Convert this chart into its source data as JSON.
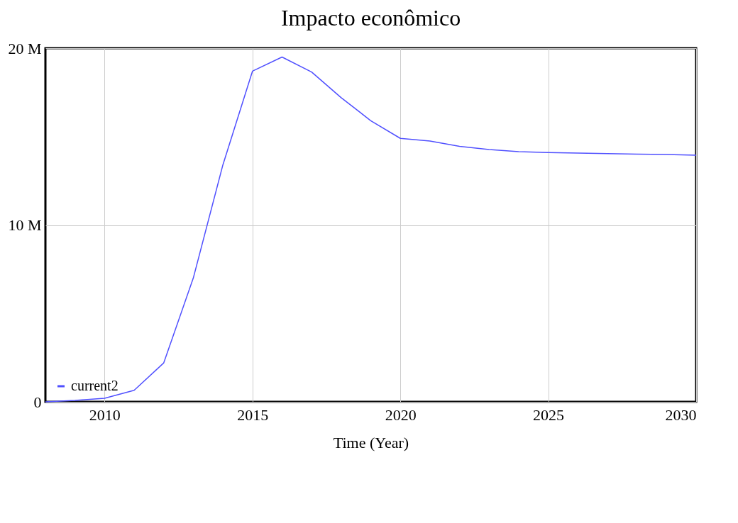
{
  "chart_data": {
    "type": "line",
    "title": "Impacto econômico",
    "xlabel": "Time (Year)",
    "x": [
      2008,
      2009,
      2010,
      2011,
      2012,
      2013,
      2014,
      2015,
      2016,
      2017,
      2018,
      2019,
      2020,
      2021,
      2022,
      2023,
      2024,
      2025,
      2026,
      2027,
      2028,
      2029,
      2030
    ],
    "series": [
      {
        "name": "current2",
        "color": "#5050ff",
        "values": [
          0,
          80000,
          200000,
          650000,
          2200000,
          7000000,
          13400000,
          18700000,
          19500000,
          18650000,
          17200000,
          15900000,
          14900000,
          14750000,
          14450000,
          14270000,
          14150000,
          14100000,
          14070000,
          14040000,
          14010000,
          13990000,
          13950000
        ]
      }
    ],
    "xlim": [
      2008,
      2030
    ],
    "xticks": [
      2010,
      2015,
      2020,
      2025,
      2030
    ],
    "ylim": [
      0,
      20000000
    ],
    "yticks": [
      {
        "value": 0,
        "label": "0"
      },
      {
        "value": 10000000,
        "label": "10 M"
      },
      {
        "value": 20000000,
        "label": "20 M"
      }
    ],
    "grid": true,
    "legend": "bottom left",
    "marker": "none",
    "line_style": "solid"
  }
}
